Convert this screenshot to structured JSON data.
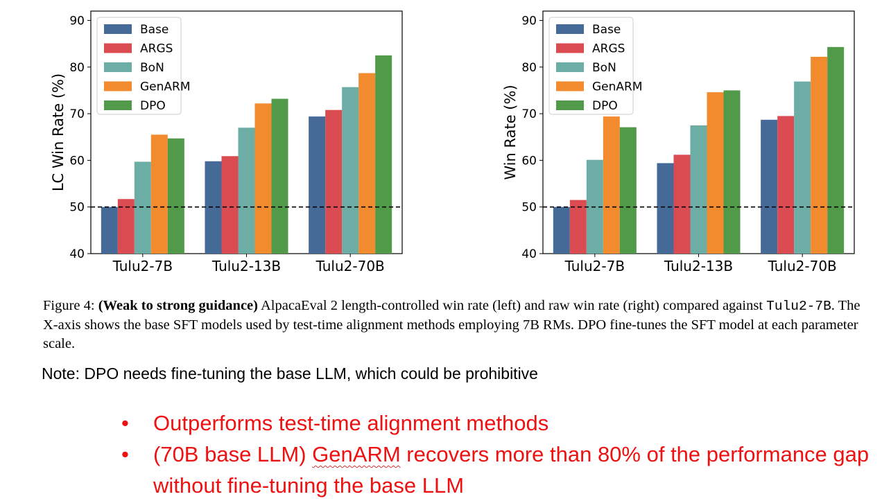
{
  "chart_data": [
    {
      "type": "bar",
      "ylabel": "LC Win Rate (%)",
      "categories": [
        "Tulu2-7B",
        "Tulu2-13B",
        "Tulu2-70B"
      ],
      "ylim": [
        40,
        92
      ],
      "yticks": [
        40,
        50,
        60,
        70,
        80,
        90
      ],
      "reference_line": 50,
      "legend_position": "upper-left",
      "series": [
        {
          "name": "Base",
          "color": "#456a98",
          "values": [
            50.0,
            59.8,
            69.4
          ]
        },
        {
          "name": "ARGS",
          "color": "#db4b52",
          "values": [
            51.7,
            60.9,
            70.8
          ]
        },
        {
          "name": "BoN",
          "color": "#6cada6",
          "values": [
            59.7,
            67.0,
            75.7
          ]
        },
        {
          "name": "GenARM",
          "color": "#f28a2e",
          "values": [
            65.5,
            72.2,
            78.7
          ]
        },
        {
          "name": "DPO",
          "color": "#519a49",
          "values": [
            64.7,
            73.2,
            82.5
          ]
        }
      ]
    },
    {
      "type": "bar",
      "ylabel": "Win Rate (%)",
      "categories": [
        "Tulu2-7B",
        "Tulu2-13B",
        "Tulu2-70B"
      ],
      "ylim": [
        40,
        92
      ],
      "yticks": [
        40,
        50,
        60,
        70,
        80,
        90
      ],
      "reference_line": 50,
      "legend_position": "upper-left",
      "series": [
        {
          "name": "Base",
          "color": "#456a98",
          "values": [
            50.0,
            59.4,
            68.7
          ]
        },
        {
          "name": "ARGS",
          "color": "#db4b52",
          "values": [
            51.5,
            61.2,
            69.5
          ]
        },
        {
          "name": "BoN",
          "color": "#6cada6",
          "values": [
            60.1,
            67.5,
            76.9
          ]
        },
        {
          "name": "GenARM",
          "color": "#f28a2e",
          "values": [
            69.4,
            74.6,
            82.2
          ]
        },
        {
          "name": "DPO",
          "color": "#519a49",
          "values": [
            67.1,
            75.0,
            84.3
          ]
        }
      ]
    }
  ],
  "caption": {
    "label": "Figure 4:",
    "bold": "(Weak to strong guidance)",
    "text1": "AlpacaEval 2 length-controlled win rate (left) and raw win rate (right) compared against",
    "code": "Tulu2-7B",
    "text2": ". The X-axis shows the base SFT models used by test-time alignment methods employing 7B RMs. DPO fine-tunes the SFT model at each parameter scale."
  },
  "note": "Note: DPO needs fine-tuning the base LLM, which could be prohibitive",
  "bullets": {
    "item1": "Outperforms test-time alignment methods",
    "item2_prefix": "(70B base LLM) ",
    "item2_underlined": "GenARM",
    "item2_suffix": " recovers more than 80% of the performance gap without fine-tuning the base LLM"
  }
}
